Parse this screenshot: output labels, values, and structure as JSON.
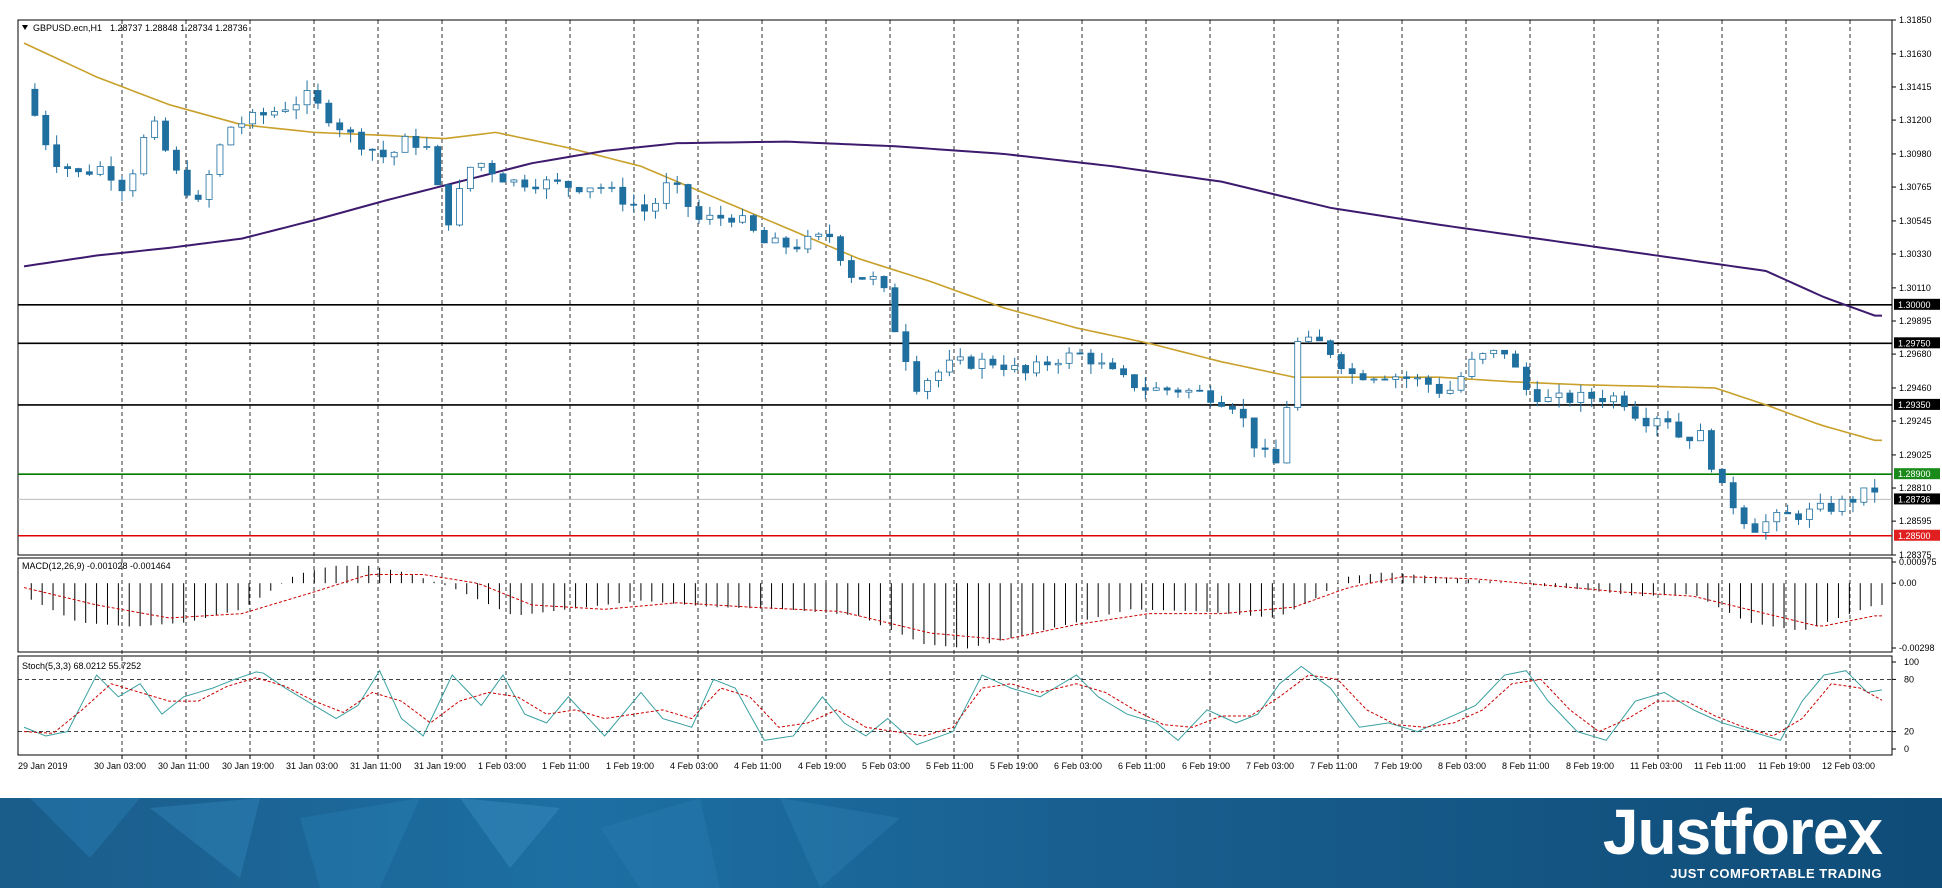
{
  "chart_data": {
    "type": "candlestick",
    "symbol_label": "GBPUSD.ecn,H1",
    "ohlc_label": "1.28737 1.28848 1.28734 1.28736",
    "price_axis_ticks": [
      "1.31850",
      "1.31630",
      "1.31415",
      "1.31200",
      "1.30980",
      "1.30765",
      "1.30545",
      "1.30330",
      "1.30110",
      "1.29895",
      "1.29680",
      "1.29460",
      "1.29245",
      "1.29025",
      "1.28810",
      "1.28595",
      "1.28375"
    ],
    "ylim": [
      1.28375,
      1.3185
    ],
    "horizontal_levels": [
      {
        "label": "1.30000",
        "value": 1.3,
        "color": "#000000"
      },
      {
        "label": "1.29750",
        "value": 1.2975,
        "color": "#000000"
      },
      {
        "label": "1.29350",
        "value": 1.2935,
        "color": "#000000"
      },
      {
        "label": "1.28900",
        "value": 1.289,
        "color": "#007a00"
      },
      {
        "label": "1.28500",
        "value": 1.285,
        "color": "#e00000"
      }
    ],
    "current_price": {
      "label": "1.28736",
      "value": 1.28736
    },
    "time_labels": [
      "29 Jan 2019",
      "30 Jan 03:00",
      "30 Jan 11:00",
      "30 Jan 19:00",
      "31 Jan 03:00",
      "31 Jan 11:00",
      "31 Jan 19:00",
      "1 Feb 03:00",
      "1 Feb 11:00",
      "1 Feb 19:00",
      "4 Feb 03:00",
      "4 Feb 11:00",
      "4 Feb 19:00",
      "5 Feb 03:00",
      "5 Feb 11:00",
      "5 Feb 19:00",
      "6 Feb 03:00",
      "6 Feb 11:00",
      "6 Feb 19:00",
      "7 Feb 03:00",
      "7 Feb 11:00",
      "7 Feb 19:00",
      "8 Feb 03:00",
      "8 Feb 11:00",
      "8 Feb 19:00",
      "11 Feb 03:00",
      "11 Feb 11:00",
      "11 Feb 19:00",
      "12 Feb 03:00"
    ],
    "price_path": [
      [
        0,
        1.314
      ],
      [
        8,
        1.3095
      ],
      [
        15,
        1.3085
      ],
      [
        22,
        1.309
      ],
      [
        28,
        1.3075
      ],
      [
        35,
        1.312
      ],
      [
        42,
        1.3085
      ],
      [
        48,
        1.3065
      ],
      [
        56,
        1.3115
      ],
      [
        68,
        1.3125
      ],
      [
        78,
        1.3135
      ],
      [
        90,
        1.311
      ],
      [
        100,
        1.3095
      ],
      [
        106,
        1.3108
      ],
      [
        112,
        1.31
      ],
      [
        116,
        1.305
      ],
      [
        124,
        1.3095
      ],
      [
        134,
        1.308
      ],
      [
        140,
        1.308
      ],
      [
        152,
        1.3077
      ],
      [
        158,
        1.3078
      ],
      [
        164,
        1.307
      ],
      [
        172,
        1.306
      ],
      [
        178,
        1.308
      ],
      [
        186,
        1.3055
      ],
      [
        196,
        1.3058
      ],
      [
        204,
        1.304
      ],
      [
        212,
        1.3038
      ],
      [
        222,
        1.3045
      ],
      [
        228,
        1.302
      ],
      [
        236,
        1.3015
      ],
      [
        240,
        1.2985
      ],
      [
        246,
        1.2948
      ],
      [
        256,
        1.2962
      ],
      [
        268,
        1.2963
      ],
      [
        276,
        1.2955
      ],
      [
        284,
        1.2965
      ],
      [
        292,
        1.2968
      ],
      [
        302,
        1.2952
      ],
      [
        310,
        1.2945
      ],
      [
        318,
        1.2945
      ],
      [
        326,
        1.2942
      ],
      [
        334,
        1.2935
      ],
      [
        340,
        1.2905
      ],
      [
        346,
        1.2895
      ],
      [
        350,
        1.2975
      ],
      [
        358,
        1.2975
      ],
      [
        366,
        1.2955
      ],
      [
        376,
        1.2955
      ],
      [
        386,
        1.295
      ],
      [
        392,
        1.2942
      ],
      [
        400,
        1.2965
      ],
      [
        408,
        1.297
      ],
      [
        414,
        1.2945
      ],
      [
        420,
        1.2938
      ],
      [
        432,
        1.294
      ],
      [
        440,
        1.294
      ],
      [
        446,
        1.2925
      ],
      [
        452,
        1.293
      ],
      [
        456,
        1.2915
      ],
      [
        462,
        1.2915
      ],
      [
        468,
        1.288
      ],
      [
        476,
        1.2855
      ],
      [
        484,
        1.2862
      ],
      [
        492,
        1.2865
      ],
      [
        500,
        1.287
      ],
      [
        506,
        1.2876
      ],
      [
        510,
        1.288
      ]
    ],
    "ma_fast_path": [
      [
        0,
        1.317
      ],
      [
        20,
        1.3148
      ],
      [
        40,
        1.313
      ],
      [
        60,
        1.3117
      ],
      [
        80,
        1.3112
      ],
      [
        100,
        1.311
      ],
      [
        116,
        1.3108
      ],
      [
        130,
        1.3112
      ],
      [
        150,
        1.3102
      ],
      [
        170,
        1.309
      ],
      [
        190,
        1.307
      ],
      [
        210,
        1.305
      ],
      [
        230,
        1.303
      ],
      [
        250,
        1.3015
      ],
      [
        270,
        1.2998
      ],
      [
        290,
        1.2985
      ],
      [
        310,
        1.2975
      ],
      [
        330,
        1.2963
      ],
      [
        350,
        1.2953
      ],
      [
        370,
        1.2953
      ],
      [
        390,
        1.2953
      ],
      [
        410,
        1.295
      ],
      [
        430,
        1.2948
      ],
      [
        450,
        1.2947
      ],
      [
        466,
        1.2946
      ],
      [
        480,
        1.2935
      ],
      [
        495,
        1.2922
      ],
      [
        510,
        1.2912
      ]
    ],
    "ma_slow_path": [
      [
        0,
        1.3025
      ],
      [
        20,
        1.3032
      ],
      [
        40,
        1.3037
      ],
      [
        60,
        1.3043
      ],
      [
        80,
        1.3055
      ],
      [
        100,
        1.3068
      ],
      [
        120,
        1.308
      ],
      [
        140,
        1.3092
      ],
      [
        160,
        1.31
      ],
      [
        180,
        1.3105
      ],
      [
        210,
        1.3106
      ],
      [
        240,
        1.3103
      ],
      [
        270,
        1.3098
      ],
      [
        300,
        1.309
      ],
      [
        330,
        1.308
      ],
      [
        360,
        1.3063
      ],
      [
        390,
        1.3052
      ],
      [
        420,
        1.3042
      ],
      [
        450,
        1.3032
      ],
      [
        480,
        1.3022
      ],
      [
        496,
        1.3005
      ],
      [
        510,
        1.2993
      ]
    ],
    "macd": {
      "label": "MACD(12,26,9) -0.001028 -0.001464",
      "ticks": [
        "0.000975",
        "0.00",
        "-0.00298"
      ],
      "ylim": [
        -0.00298,
        0.000975
      ],
      "hist_path": [
        [
          0,
          -0.0006
        ],
        [
          15,
          -0.0018
        ],
        [
          30,
          -0.002
        ],
        [
          45,
          -0.0018
        ],
        [
          60,
          -0.0012
        ],
        [
          75,
          0.0004
        ],
        [
          85,
          0.0008
        ],
        [
          95,
          0.0008
        ],
        [
          105,
          0.0005
        ],
        [
          118,
          -0.0002
        ],
        [
          135,
          -0.0015
        ],
        [
          155,
          -0.0011
        ],
        [
          170,
          -0.0008
        ],
        [
          190,
          -0.0011
        ],
        [
          210,
          -0.0012
        ],
        [
          230,
          -0.0015
        ],
        [
          248,
          -0.0028
        ],
        [
          260,
          -0.003
        ],
        [
          275,
          -0.0024
        ],
        [
          290,
          -0.0018
        ],
        [
          305,
          -0.0012
        ],
        [
          325,
          -0.0013
        ],
        [
          345,
          -0.0016
        ],
        [
          355,
          -0.0008
        ],
        [
          365,
          0.0003
        ],
        [
          375,
          0.0005
        ],
        [
          390,
          0.0003
        ],
        [
          410,
          0.0
        ],
        [
          430,
          -0.0003
        ],
        [
          445,
          -0.0006
        ],
        [
          460,
          -0.0005
        ],
        [
          475,
          -0.0018
        ],
        [
          490,
          -0.0022
        ],
        [
          500,
          -0.0016
        ],
        [
          510,
          -0.001
        ]
      ],
      "signal_path": [
        [
          0,
          -0.0002
        ],
        [
          20,
          -0.001
        ],
        [
          40,
          -0.0016
        ],
        [
          60,
          -0.0014
        ],
        [
          80,
          -0.0004
        ],
        [
          95,
          0.0004
        ],
        [
          110,
          0.0004
        ],
        [
          125,
          0.0
        ],
        [
          140,
          -0.001
        ],
        [
          160,
          -0.0012
        ],
        [
          180,
          -0.0009
        ],
        [
          200,
          -0.0011
        ],
        [
          225,
          -0.0013
        ],
        [
          250,
          -0.0023
        ],
        [
          270,
          -0.0026
        ],
        [
          290,
          -0.0019
        ],
        [
          310,
          -0.0014
        ],
        [
          330,
          -0.0014
        ],
        [
          350,
          -0.0011
        ],
        [
          365,
          -0.0002
        ],
        [
          380,
          0.0003
        ],
        [
          400,
          0.0002
        ],
        [
          420,
          -0.0001
        ],
        [
          440,
          -0.0004
        ],
        [
          460,
          -0.0006
        ],
        [
          480,
          -0.0014
        ],
        [
          495,
          -0.002
        ],
        [
          510,
          -0.0015
        ]
      ]
    },
    "stoch": {
      "label": "Stoch(5,3,3) 68.0212 55.7252",
      "ticks": [
        "100",
        "80",
        "20",
        "0"
      ],
      "ylim": [
        0,
        100
      ],
      "levels": [
        80,
        20
      ],
      "k_path": [
        [
          0,
          25
        ],
        [
          6,
          15
        ],
        [
          12,
          20
        ],
        [
          20,
          85
        ],
        [
          26,
          60
        ],
        [
          32,
          75
        ],
        [
          38,
          40
        ],
        [
          44,
          60
        ],
        [
          52,
          70
        ],
        [
          58,
          80
        ],
        [
          65,
          90
        ],
        [
          72,
          70
        ],
        [
          80,
          50
        ],
        [
          86,
          35
        ],
        [
          92,
          50
        ],
        [
          98,
          90
        ],
        [
          104,
          35
        ],
        [
          110,
          15
        ],
        [
          118,
          85
        ],
        [
          126,
          50
        ],
        [
          132,
          85
        ],
        [
          138,
          40
        ],
        [
          144,
          30
        ],
        [
          150,
          60
        ],
        [
          160,
          15
        ],
        [
          170,
          65
        ],
        [
          176,
          35
        ],
        [
          184,
          25
        ],
        [
          190,
          80
        ],
        [
          196,
          70
        ],
        [
          204,
          10
        ],
        [
          212,
          15
        ],
        [
          220,
          60
        ],
        [
          226,
          30
        ],
        [
          232,
          15
        ],
        [
          238,
          35
        ],
        [
          246,
          5
        ],
        [
          256,
          20
        ],
        [
          264,
          85
        ],
        [
          272,
          70
        ],
        [
          280,
          60
        ],
        [
          290,
          85
        ],
        [
          296,
          60
        ],
        [
          304,
          40
        ],
        [
          312,
          30
        ],
        [
          318,
          10
        ],
        [
          326,
          45
        ],
        [
          334,
          30
        ],
        [
          340,
          40
        ],
        [
          346,
          75
        ],
        [
          352,
          95
        ],
        [
          360,
          70
        ],
        [
          368,
          25
        ],
        [
          376,
          30
        ],
        [
          384,
          20
        ],
        [
          392,
          35
        ],
        [
          400,
          50
        ],
        [
          408,
          85
        ],
        [
          414,
          90
        ],
        [
          420,
          55
        ],
        [
          428,
          20
        ],
        [
          436,
          10
        ],
        [
          444,
          55
        ],
        [
          452,
          65
        ],
        [
          460,
          45
        ],
        [
          468,
          30
        ],
        [
          476,
          20
        ],
        [
          484,
          10
        ],
        [
          490,
          55
        ],
        [
          496,
          85
        ],
        [
          502,
          90
        ],
        [
          508,
          65
        ],
        [
          512,
          68
        ]
      ],
      "d_path": [
        [
          0,
          20
        ],
        [
          8,
          18
        ],
        [
          16,
          45
        ],
        [
          24,
          75
        ],
        [
          32,
          65
        ],
        [
          40,
          55
        ],
        [
          48,
          55
        ],
        [
          56,
          72
        ],
        [
          64,
          82
        ],
        [
          72,
          72
        ],
        [
          80,
          55
        ],
        [
          88,
          42
        ],
        [
          96,
          65
        ],
        [
          104,
          55
        ],
        [
          112,
          30
        ],
        [
          120,
          55
        ],
        [
          128,
          65
        ],
        [
          136,
          60
        ],
        [
          144,
          40
        ],
        [
          152,
          45
        ],
        [
          160,
          35
        ],
        [
          168,
          40
        ],
        [
          176,
          45
        ],
        [
          184,
          35
        ],
        [
          192,
          70
        ],
        [
          200,
          60
        ],
        [
          208,
          25
        ],
        [
          216,
          30
        ],
        [
          224,
          45
        ],
        [
          232,
          25
        ],
        [
          240,
          20
        ],
        [
          248,
          15
        ],
        [
          256,
          25
        ],
        [
          264,
          70
        ],
        [
          272,
          75
        ],
        [
          280,
          65
        ],
        [
          290,
          75
        ],
        [
          298,
          65
        ],
        [
          306,
          45
        ],
        [
          314,
          28
        ],
        [
          322,
          25
        ],
        [
          330,
          38
        ],
        [
          338,
          38
        ],
        [
          346,
          60
        ],
        [
          354,
          85
        ],
        [
          362,
          80
        ],
        [
          370,
          45
        ],
        [
          378,
          28
        ],
        [
          386,
          25
        ],
        [
          394,
          30
        ],
        [
          402,
          45
        ],
        [
          410,
          75
        ],
        [
          418,
          80
        ],
        [
          426,
          45
        ],
        [
          434,
          20
        ],
        [
          442,
          35
        ],
        [
          450,
          55
        ],
        [
          458,
          55
        ],
        [
          466,
          38
        ],
        [
          474,
          25
        ],
        [
          482,
          15
        ],
        [
          490,
          35
        ],
        [
          498,
          75
        ],
        [
          506,
          70
        ],
        [
          512,
          56
        ]
      ]
    }
  },
  "brand": {
    "name": "Justforex",
    "tagline": "JUST COMFORTABLE TRADING"
  },
  "colors": {
    "bull": "#1f6f9f",
    "bear": "#1f6f9f",
    "ma_fast": "#c8a02a",
    "ma_slow": "#3d1a6e",
    "stoch_k": "#3aa0a0",
    "stoch_d": "#cc0000",
    "banner": "#1d6fa3"
  }
}
